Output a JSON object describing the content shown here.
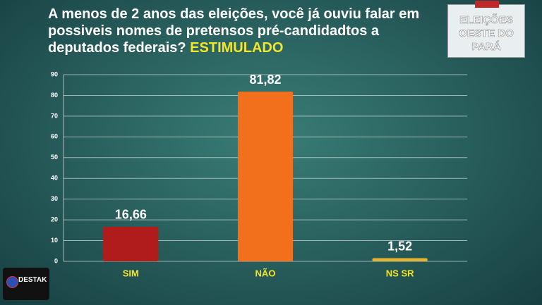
{
  "title": "A menos de 2 anos das eleições, você já ouviu falar em possiveis nomes  de pretensos pré-candidadtos a deputados federais?",
  "title_emphasis": "ESTIMULADO",
  "logo": "ELEIÇÕES OESTE DO PARÁ",
  "brand": "DESTAK",
  "chart_data": {
    "type": "bar",
    "categories": [
      "SIM",
      "NÃO",
      "NS SR"
    ],
    "values": [
      16.66,
      81.82,
      1.52
    ],
    "value_labels": [
      "16,66",
      "81,82",
      "1,52"
    ],
    "colors": [
      "#b01c1c",
      "#f26f1c",
      "#e6b431"
    ],
    "ylim": [
      0,
      90
    ],
    "yticks": [
      0,
      10,
      20,
      30,
      40,
      50,
      60,
      70,
      80,
      90
    ],
    "grid": true
  }
}
